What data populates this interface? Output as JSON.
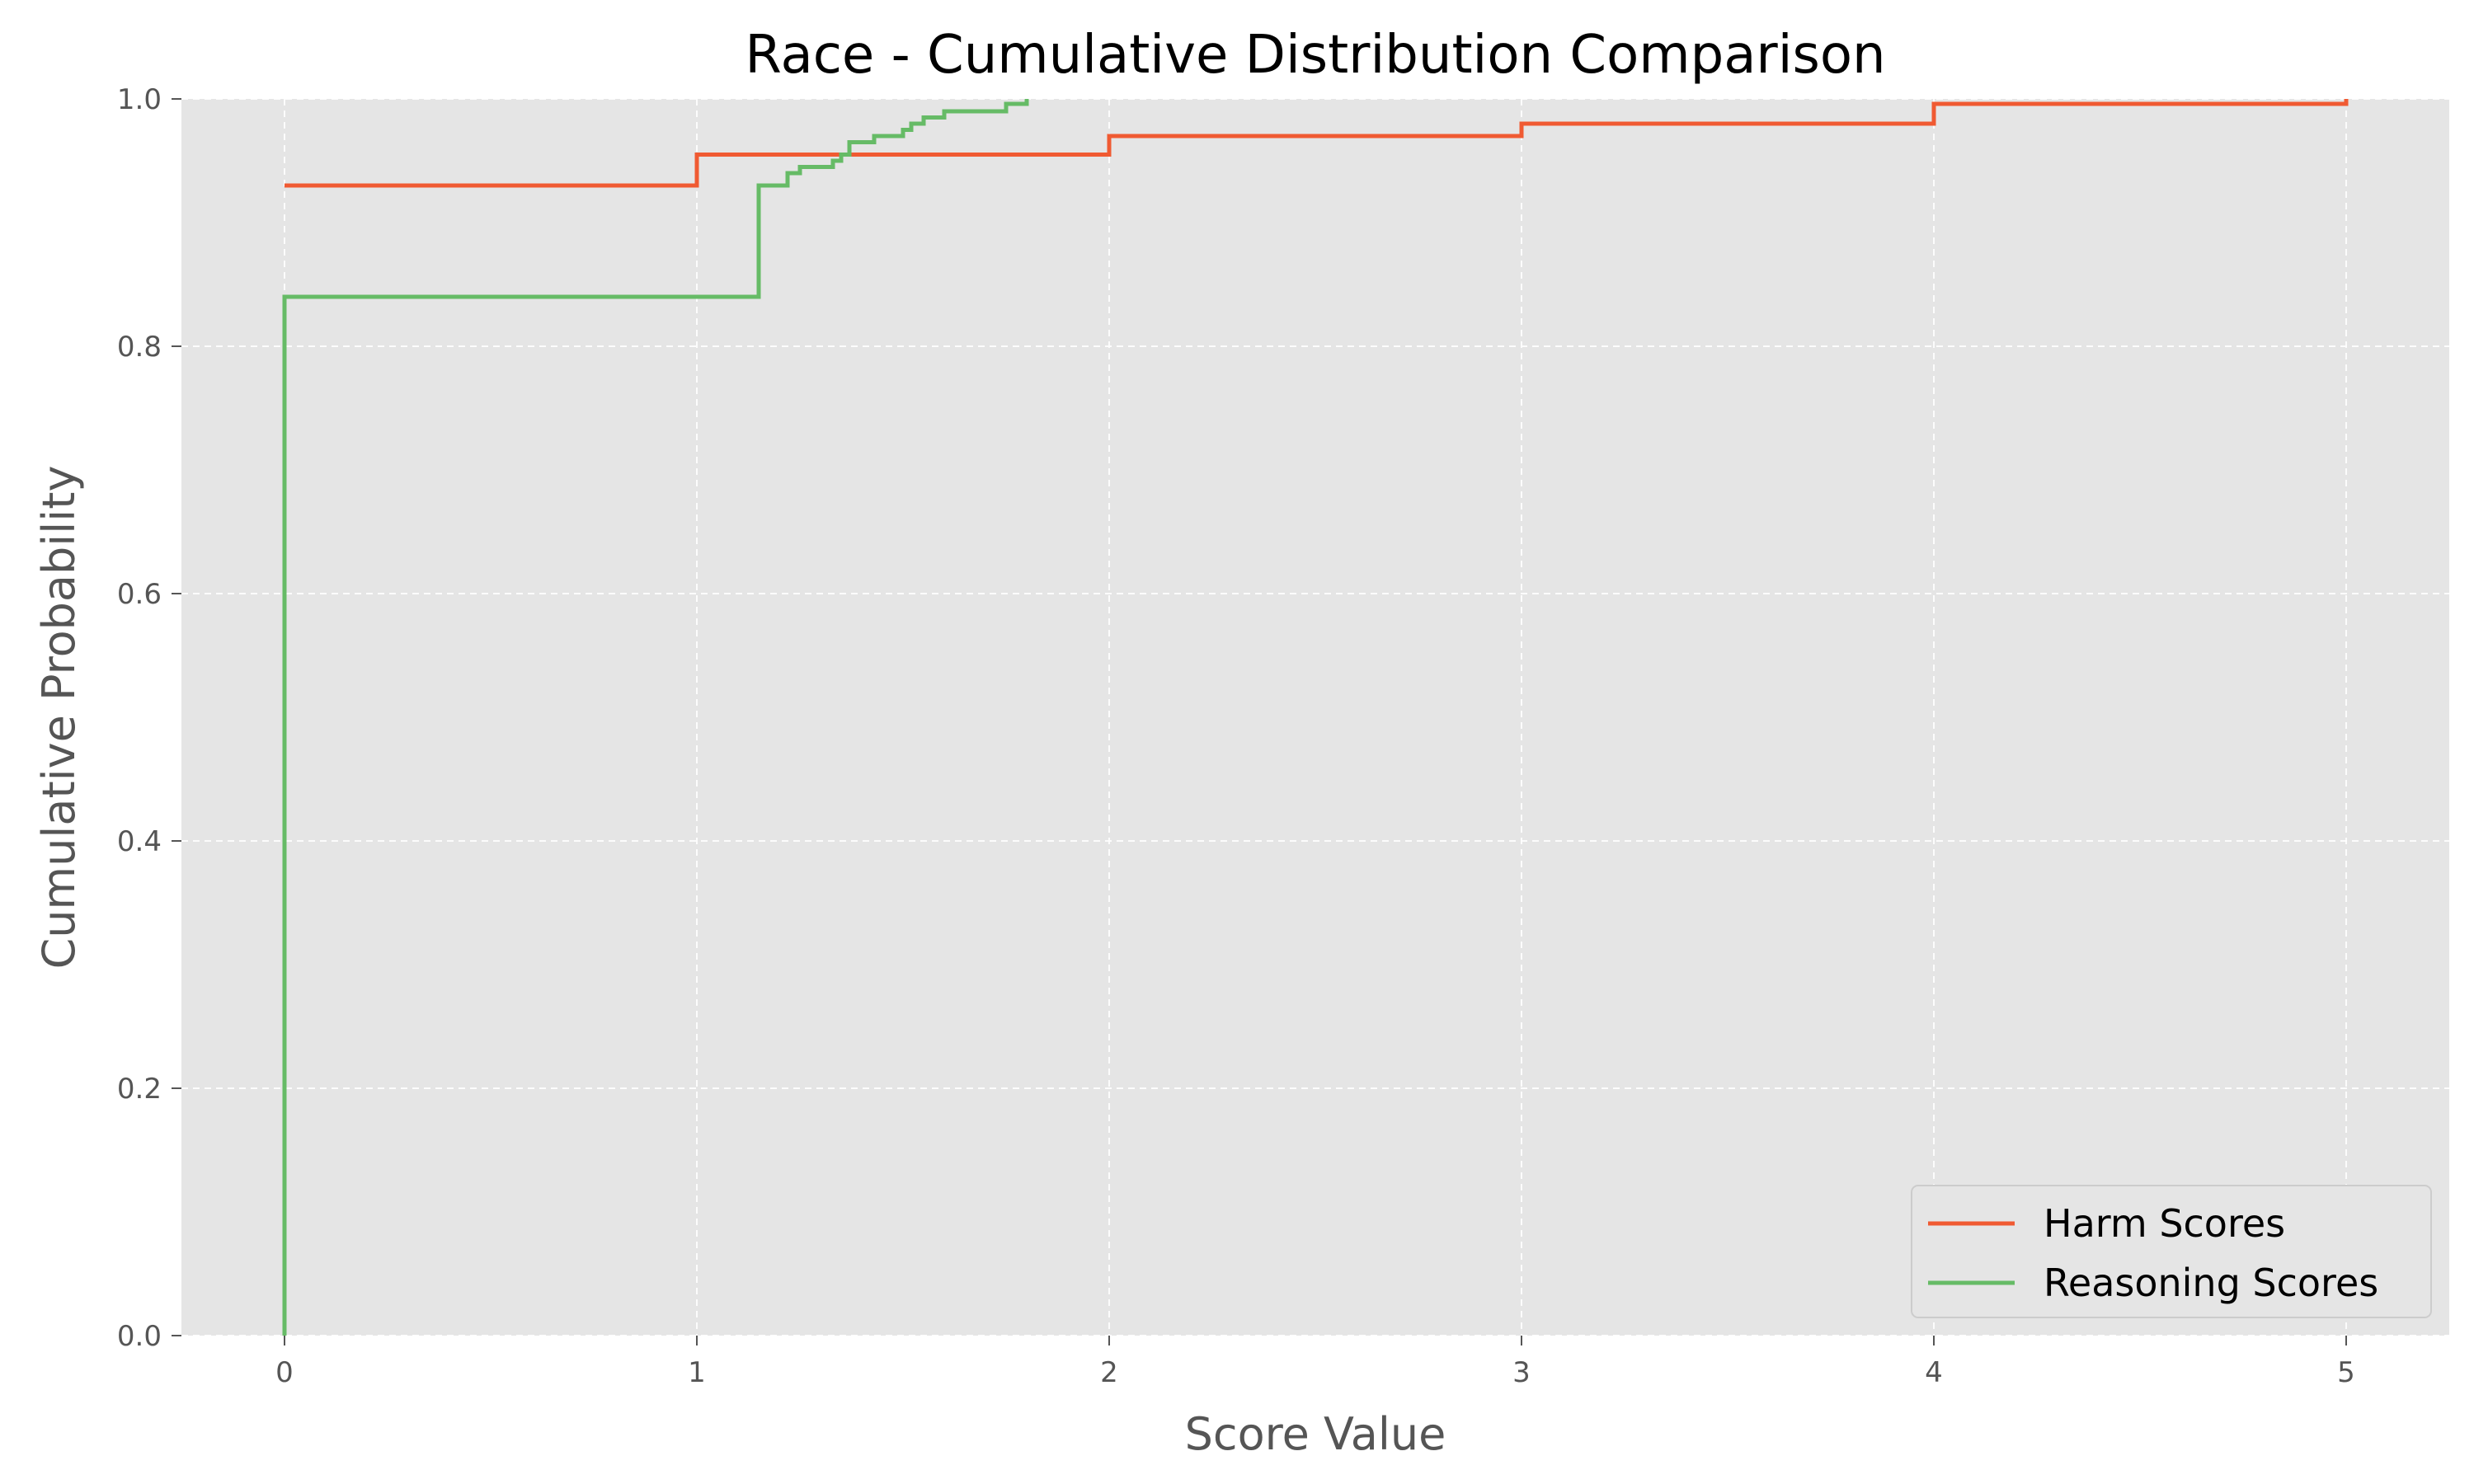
{
  "chart_data": {
    "type": "line",
    "step": "post",
    "title": "Race - Cumulative Distribution Comparison",
    "xlabel": "Score Value",
    "ylabel": "Cumulative Probability",
    "xlim": [
      -0.25,
      5.25
    ],
    "ylim": [
      0.0,
      1.0
    ],
    "xticks": [
      0,
      1,
      2,
      3,
      4,
      5
    ],
    "xtick_labels": [
      "0",
      "1",
      "2",
      "3",
      "4",
      "5"
    ],
    "yticks": [
      0.0,
      0.2,
      0.4,
      0.6,
      0.8,
      1.0
    ],
    "ytick_labels": [
      "0.0",
      "0.2",
      "0.4",
      "0.6",
      "0.8",
      "1.0"
    ],
    "grid": true,
    "legend_position": "lower-right",
    "background": "#e5e5e5",
    "series": [
      {
        "name": "Harm Scores",
        "color": "#f05a32",
        "x": [
          0,
          1,
          2,
          3,
          4,
          5
        ],
        "y": [
          0.93,
          0.955,
          0.97,
          0.98,
          0.996,
          1.0
        ]
      },
      {
        "name": "Reasoning Scores",
        "color": "#66bb66",
        "x": [
          0,
          0,
          1.15,
          1.22,
          1.25,
          1.33,
          1.35,
          1.37,
          1.43,
          1.5,
          1.52,
          1.55,
          1.6,
          1.75,
          1.8
        ],
        "y": [
          0.0,
          0.84,
          0.93,
          0.94,
          0.945,
          0.95,
          0.955,
          0.965,
          0.97,
          0.975,
          0.98,
          0.985,
          0.99,
          0.996,
          1.0
        ]
      }
    ]
  }
}
